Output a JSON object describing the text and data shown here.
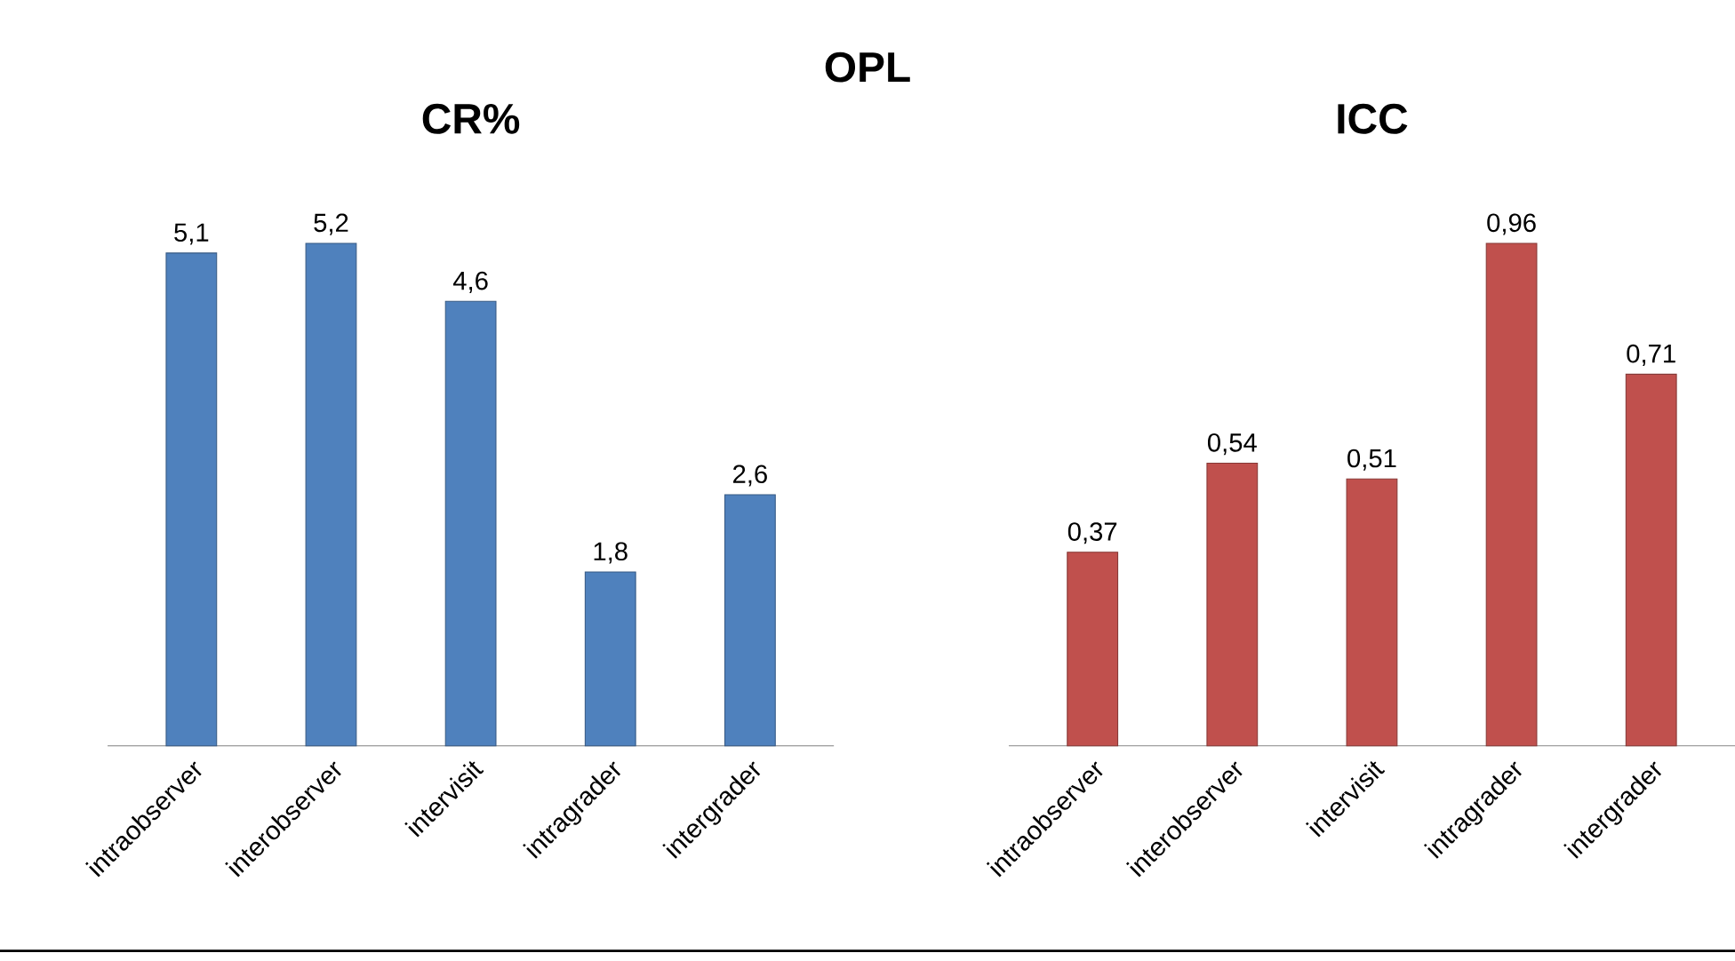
{
  "chart_data": [
    {
      "type": "other",
      "title": "OPL"
    },
    {
      "type": "bar",
      "title": "CR%",
      "categories": [
        "intraobserver",
        "interobserver",
        "intervisit",
        "intragrader",
        "intergrader"
      ],
      "values": [
        5.1,
        5.2,
        4.6,
        1.8,
        2.6
      ],
      "value_labels": [
        "5,1",
        "5,2",
        "4,6",
        "1,8",
        "2,6"
      ],
      "color": "#4f81bd"
    },
    {
      "type": "bar",
      "title": "ICC",
      "categories": [
        "intraobserver",
        "interobserver",
        "intervisit",
        "intragrader",
        "intergrader"
      ],
      "values": [
        0.37,
        0.54,
        0.51,
        0.96,
        0.71
      ],
      "value_labels": [
        "0,37",
        "0,54",
        "0,51",
        "0,96",
        "0,71"
      ],
      "color": "#c0504d"
    }
  ]
}
